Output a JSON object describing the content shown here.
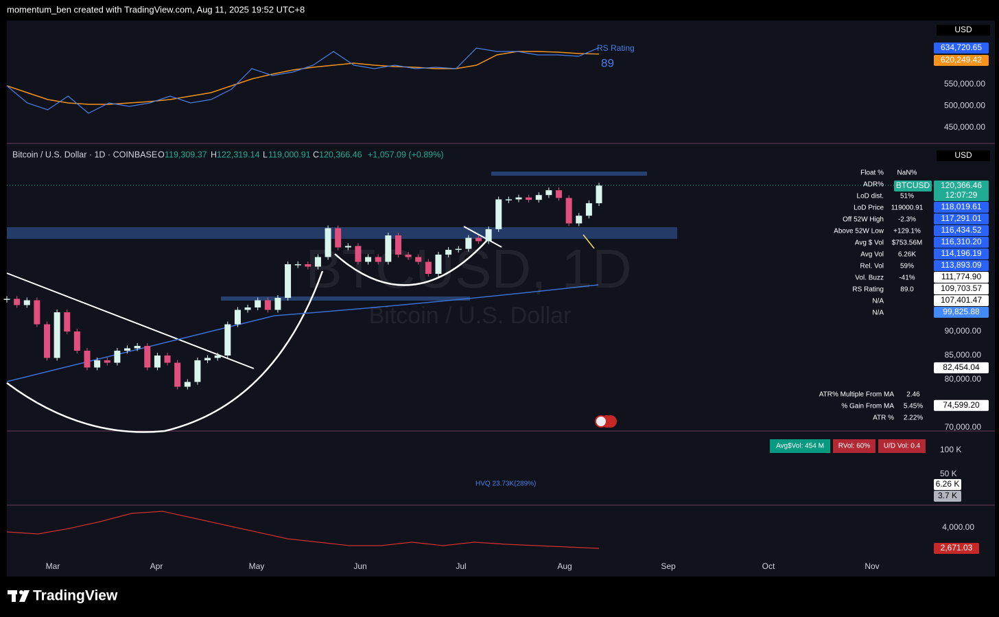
{
  "header": {
    "credit": "momentum_ben created with TradingView.com, Aug 11, 2025 19:52 UTC+8"
  },
  "rs_panel": {
    "currency": "USD",
    "legend": "RS Rating",
    "rating": "89",
    "labels": [
      {
        "text": "634,720.65",
        "color": "#2962ff"
      },
      {
        "text": "620,249.42",
        "color": "#f7931a"
      }
    ],
    "ticks": [
      {
        "value": 550000,
        "label": "550,000.00"
      },
      {
        "value": 500000,
        "label": "500,000.00"
      },
      {
        "value": 450000,
        "label": "450,000.00"
      }
    ],
    "rs": [
      546800,
      507100,
      491300,
      523000,
      483300,
      507100,
      499200,
      507100,
      523000,
      507100,
      515100,
      538900,
      586500,
      570600,
      578600,
      594400,
      626200,
      594400,
      586500,
      594400,
      586500,
      589700,
      586500,
      634100,
      626200,
      626200,
      618300,
      618300,
      615100,
      634720.65
    ],
    "rs_ma": [
      546800,
      531000,
      515100,
      507100,
      504000,
      504000,
      507100,
      510300,
      515100,
      523000,
      531000,
      546800,
      562700,
      573800,
      583300,
      589700,
      594400,
      599200,
      594400,
      591300,
      589700,
      586500,
      586500,
      594400,
      618300,
      626200,
      626200,
      624600,
      621400,
      620249.42
    ]
  },
  "main": {
    "title": "Bitcoin / U.S. Dollar · 1D · COINBASE",
    "ohlc": [
      {
        "key": "O",
        "value": "119,309.37"
      },
      {
        "key": "H",
        "value": "122,319.14"
      },
      {
        "key": "L",
        "value": "119,000.91"
      },
      {
        "key": "C",
        "value": "120,366.46"
      }
    ],
    "change": "+1,057.09 (+0.89%)",
    "watermark": "BTCUSD, 1D",
    "watermark_sub": "Bitcoin / U.S. Dollar",
    "currency": "USD",
    "symbol": "BTCUSD",
    "price": "120,366.46",
    "countdown": "12:07:29",
    "price_labels": [
      {
        "text": "118,019.61",
        "color": "#2962ff"
      },
      {
        "text": "117,291.01",
        "color": "#2962ff"
      },
      {
        "text": "116,434.52",
        "color": "#2962ff"
      },
      {
        "text": "116,310.20",
        "color": "#2962ff"
      },
      {
        "text": "114,196.19",
        "color": "#2962ff"
      },
      {
        "text": "113,893.09",
        "color": "#2962ff"
      },
      {
        "text": "111,774.90",
        "color": "#ffffff"
      },
      {
        "text": "109,703.57",
        "color": "#ffffff"
      },
      {
        "text": "107,401.47",
        "color": "#ffffff"
      },
      {
        "text": "99,825.88",
        "color": "#448aff"
      }
    ],
    "low_labels": [
      {
        "text": "82,454.04",
        "value": 82454.04
      },
      {
        "text": "74,599.20",
        "value": 74599.2
      }
    ],
    "ticks": [
      {
        "value": 90000,
        "label": "90,000.00"
      },
      {
        "value": 85000,
        "label": "85,000.00"
      },
      {
        "value": 80000,
        "label": "80,000.00"
      },
      {
        "value": 70000,
        "label": "70,000.00"
      }
    ],
    "stats": [
      {
        "label": "Float %",
        "value": "NaN%"
      },
      {
        "label": "ADR%"
      },
      {
        "label": "LoD dist.",
        "value": "51%"
      },
      {
        "label": "LoD Price",
        "value": "119000.91"
      },
      {
        "label": "Off 52W High",
        "value": "-2.3%"
      },
      {
        "label": "Above 52W Low",
        "value": "+129.1%"
      },
      {
        "label": "Avg $ Vol",
        "value": "$753.56M"
      },
      {
        "label": "Avg Vol",
        "value": "6.26K"
      },
      {
        "label": "Rel. Vol",
        "value": "59%"
      },
      {
        "label": "Vol. Buzz",
        "value": "-41%"
      },
      {
        "label": "RS Rating",
        "value": "89.0"
      },
      {
        "label": "N/A"
      },
      {
        "label": "N/A"
      }
    ],
    "atr": [
      {
        "label": "ATR% Multiple From MA",
        "value": "2.46"
      },
      {
        "label": "% Gain From MA",
        "value": "5.45%"
      },
      {
        "label": "ATR %",
        "value": "2.22%"
      }
    ],
    "closes": [
      96800,
      95500,
      96500,
      91500,
      84500,
      94000,
      90000,
      86000,
      82500,
      84000,
      83500,
      86000,
      86500,
      87000,
      82500,
      85000,
      83500,
      78500,
      79500,
      84000,
      84500,
      85000,
      91500,
      94500,
      95000,
      96500,
      94500,
      97000,
      104000,
      104000,
      103500,
      105500,
      111500,
      107500,
      107800,
      104500,
      105500,
      104500,
      110000,
      106000,
      105500,
      104500,
      102000,
      106000,
      107000,
      107200,
      109500,
      108800,
      111300,
      117500,
      117500,
      117900,
      117400,
      118400,
      119400,
      117800,
      112500,
      114100,
      116700,
      120366.46
    ]
  },
  "volume": {
    "badges": [
      {
        "text": "Avg$Vol: 454 M",
        "color": "#089981"
      },
      {
        "text": "RVol: 60%",
        "color": "#b22833"
      },
      {
        "text": "U/D Vol: 0.4",
        "color": "#b22833"
      }
    ],
    "hvq": "HVQ 23.73K(289%)",
    "ticks": [
      "100 K",
      "50 K"
    ],
    "labels": [
      {
        "text": "6.26 K",
        "color": "#ffffff"
      },
      {
        "text": "3.7 K",
        "color": "#b2b5be"
      }
    ]
  },
  "lower": {
    "tick": {
      "value": 4000,
      "label": "4,000.00"
    },
    "label": "2,671.03",
    "values": [
      3734,
      3601,
      3956,
      4399,
      4930,
      5063,
      4620,
      4177,
      3734,
      3291,
      3070,
      2848,
      2848,
      3070,
      2848,
      3070,
      2937,
      2848,
      2760,
      2671.03
    ]
  },
  "time_axis": [
    "Mar",
    "Apr",
    "May",
    "Jun",
    "Jul",
    "Aug",
    "Sep",
    "Oct",
    "Nov"
  ],
  "footer": {
    "brand": "TradingView"
  }
}
